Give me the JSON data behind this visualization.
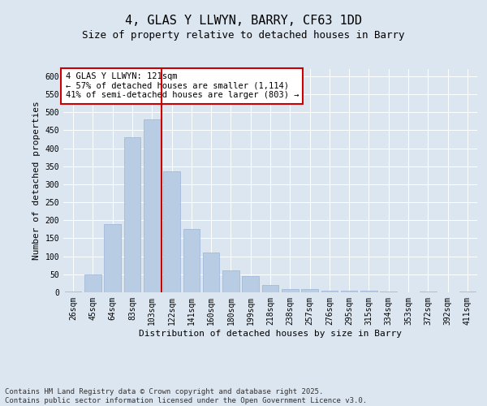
{
  "title1": "4, GLAS Y LLWYN, BARRY, CF63 1DD",
  "title2": "Size of property relative to detached houses in Barry",
  "xlabel": "Distribution of detached houses by size in Barry",
  "ylabel": "Number of detached properties",
  "categories": [
    "26sqm",
    "45sqm",
    "64sqm",
    "83sqm",
    "103sqm",
    "122sqm",
    "141sqm",
    "160sqm",
    "180sqm",
    "199sqm",
    "218sqm",
    "238sqm",
    "257sqm",
    "276sqm",
    "295sqm",
    "315sqm",
    "334sqm",
    "353sqm",
    "372sqm",
    "392sqm",
    "411sqm"
  ],
  "values": [
    2,
    50,
    190,
    430,
    480,
    335,
    175,
    110,
    60,
    45,
    20,
    10,
    10,
    5,
    5,
    5,
    2,
    1,
    2,
    1,
    2
  ],
  "bar_color": "#b8cce4",
  "bar_edgecolor": "#9ab3d4",
  "bg_color": "#dce6f1",
  "grid_color": "#ffffff",
  "vline_color": "#cc0000",
  "annotation_text": "4 GLAS Y LLWYN: 121sqm\n← 57% of detached houses are smaller (1,114)\n41% of semi-detached houses are larger (803) →",
  "annotation_box_color": "#ffffff",
  "annotation_box_edgecolor": "#cc0000",
  "ylim": [
    0,
    620
  ],
  "yticks": [
    0,
    50,
    100,
    150,
    200,
    250,
    300,
    350,
    400,
    450,
    500,
    550,
    600
  ],
  "footer_text": "Contains HM Land Registry data © Crown copyright and database right 2025.\nContains public sector information licensed under the Open Government Licence v3.0.",
  "title_fontsize": 11,
  "subtitle_fontsize": 9,
  "axis_fontsize": 8,
  "tick_fontsize": 7,
  "annotation_fontsize": 7.5,
  "footer_fontsize": 6.5
}
